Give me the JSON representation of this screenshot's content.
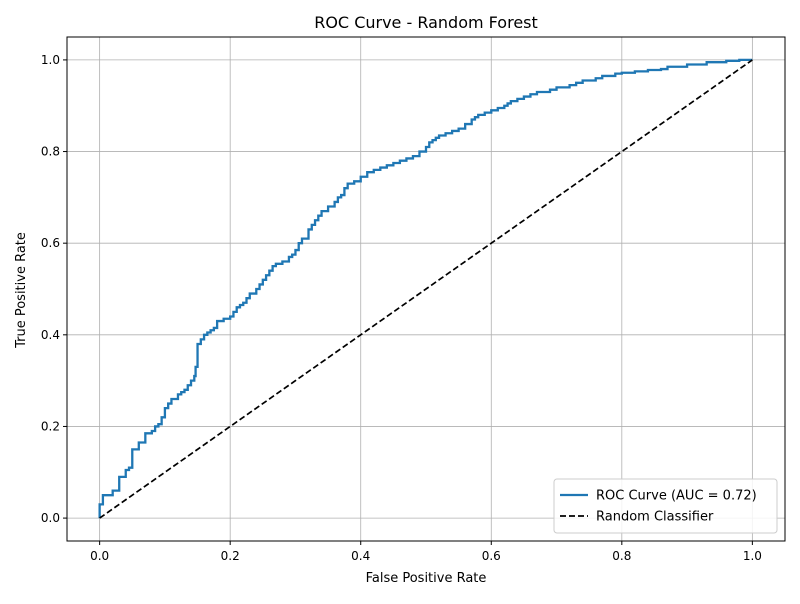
{
  "chart_data": {
    "type": "line",
    "title": "ROC Curve - Random Forest",
    "xlabel": "False Positive Rate",
    "ylabel": "True Positive Rate",
    "xlim": [
      -0.05,
      1.05
    ],
    "ylim": [
      -0.05,
      1.05
    ],
    "xticks": [
      0.0,
      0.2,
      0.4,
      0.6,
      0.8,
      1.0
    ],
    "yticks": [
      0.0,
      0.2,
      0.4,
      0.6,
      0.8,
      1.0
    ],
    "xtick_labels": [
      "0.0",
      "0.2",
      "0.4",
      "0.6",
      "0.8",
      "1.0"
    ],
    "ytick_labels": [
      "0.0",
      "0.2",
      "0.4",
      "0.6",
      "0.8",
      "1.0"
    ],
    "grid": true,
    "legend_position": "lower-right",
    "series": [
      {
        "name": "ROC Curve (AUC = 0.72)",
        "color": "#1f77b4",
        "style": "solid-step",
        "x": [
          0.0,
          0.0,
          0.005,
          0.005,
          0.02,
          0.03,
          0.03,
          0.04,
          0.045,
          0.05,
          0.05,
          0.06,
          0.07,
          0.07,
          0.08,
          0.085,
          0.09,
          0.095,
          0.1,
          0.105,
          0.11,
          0.12,
          0.125,
          0.13,
          0.135,
          0.14,
          0.145,
          0.147,
          0.15,
          0.155,
          0.16,
          0.165,
          0.17,
          0.175,
          0.18,
          0.19,
          0.2,
          0.205,
          0.21,
          0.215,
          0.22,
          0.225,
          0.23,
          0.24,
          0.245,
          0.25,
          0.255,
          0.26,
          0.265,
          0.27,
          0.28,
          0.29,
          0.295,
          0.3,
          0.305,
          0.31,
          0.32,
          0.325,
          0.33,
          0.335,
          0.34,
          0.35,
          0.36,
          0.365,
          0.37,
          0.375,
          0.38,
          0.39,
          0.4,
          0.41,
          0.42,
          0.43,
          0.44,
          0.45,
          0.46,
          0.47,
          0.48,
          0.49,
          0.5,
          0.505,
          0.51,
          0.515,
          0.52,
          0.53,
          0.54,
          0.55,
          0.56,
          0.57,
          0.575,
          0.58,
          0.59,
          0.6,
          0.61,
          0.62,
          0.625,
          0.63,
          0.64,
          0.65,
          0.66,
          0.67,
          0.69,
          0.7,
          0.72,
          0.73,
          0.74,
          0.76,
          0.77,
          0.79,
          0.8,
          0.82,
          0.84,
          0.86,
          0.87,
          0.9,
          0.93,
          0.96,
          0.98,
          1.0
        ],
        "y": [
          0.0,
          0.03,
          0.05,
          0.05,
          0.06,
          0.085,
          0.09,
          0.105,
          0.11,
          0.13,
          0.15,
          0.165,
          0.17,
          0.185,
          0.19,
          0.2,
          0.205,
          0.22,
          0.24,
          0.25,
          0.26,
          0.27,
          0.275,
          0.28,
          0.29,
          0.3,
          0.31,
          0.33,
          0.38,
          0.39,
          0.4,
          0.405,
          0.41,
          0.415,
          0.43,
          0.435,
          0.44,
          0.45,
          0.46,
          0.465,
          0.47,
          0.48,
          0.49,
          0.5,
          0.51,
          0.52,
          0.53,
          0.54,
          0.55,
          0.555,
          0.56,
          0.57,
          0.575,
          0.585,
          0.6,
          0.61,
          0.63,
          0.64,
          0.65,
          0.66,
          0.67,
          0.68,
          0.69,
          0.7,
          0.705,
          0.72,
          0.73,
          0.735,
          0.745,
          0.755,
          0.76,
          0.765,
          0.77,
          0.775,
          0.78,
          0.785,
          0.79,
          0.8,
          0.81,
          0.82,
          0.825,
          0.83,
          0.835,
          0.84,
          0.845,
          0.85,
          0.86,
          0.87,
          0.875,
          0.88,
          0.885,
          0.89,
          0.895,
          0.9,
          0.905,
          0.91,
          0.915,
          0.92,
          0.925,
          0.93,
          0.935,
          0.94,
          0.945,
          0.95,
          0.955,
          0.96,
          0.965,
          0.97,
          0.972,
          0.975,
          0.978,
          0.98,
          0.985,
          0.99,
          0.995,
          0.998,
          1.0,
          1.0
        ]
      },
      {
        "name": "Random Classifier",
        "color": "#000000",
        "style": "dashed",
        "x": [
          0.0,
          1.0
        ],
        "y": [
          0.0,
          1.0
        ]
      }
    ]
  }
}
